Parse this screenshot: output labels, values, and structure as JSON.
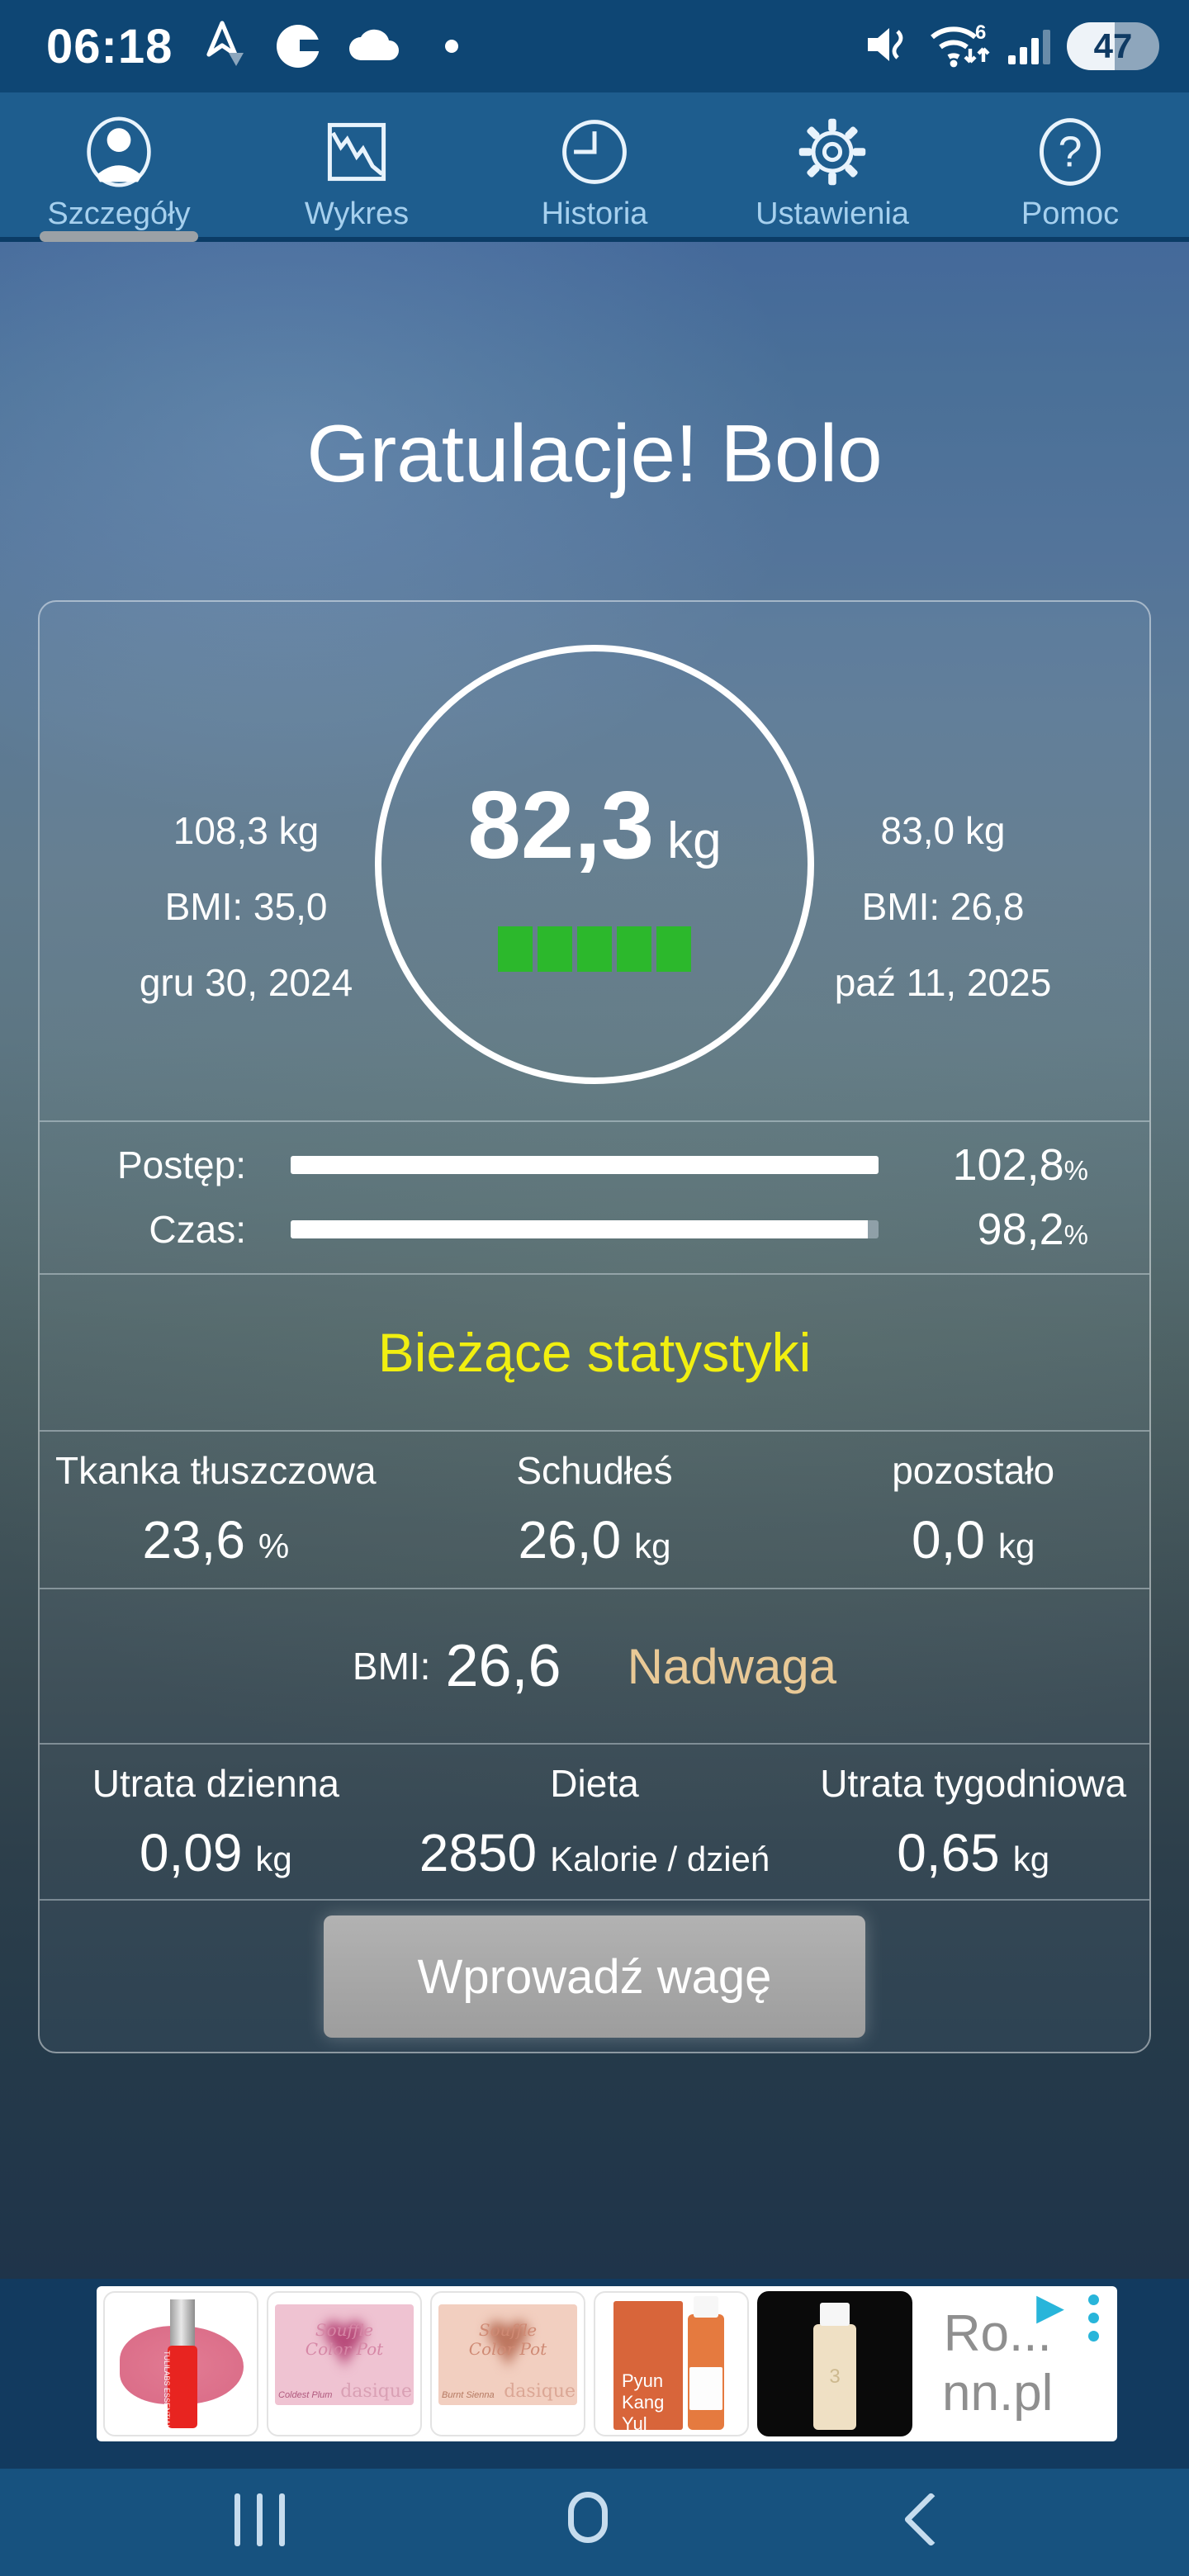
{
  "status_bar": {
    "time": "06:18",
    "battery_percent": "47"
  },
  "tab_bar": {
    "tabs": [
      {
        "label": "Szczegóły",
        "selected": true
      },
      {
        "label": "Wykres",
        "selected": false
      },
      {
        "label": "Historia",
        "selected": false
      },
      {
        "label": "Ustawienia",
        "selected": false
      },
      {
        "label": "Pomoc",
        "selected": false
      }
    ]
  },
  "main": {
    "title": "Gratulacje! Bolo",
    "start": {
      "weight": "108,3 kg",
      "bmi": "BMI: 35,0",
      "date": "gru 30, 2024"
    },
    "goal": {
      "weight": "83,0 kg",
      "bmi": "BMI: 26,8",
      "date": "paź 11, 2025"
    },
    "current": {
      "value": "82,3",
      "unit": "kg",
      "progress_blocks": 5
    },
    "progress_row": {
      "label": "Postęp:",
      "value": "102,8",
      "unit": "%",
      "percent": 102.8
    },
    "time_row": {
      "label": "Czas:",
      "value": "98,2",
      "unit": "%",
      "percent": 98.2
    },
    "stats_heading": "Bieżące statystyki",
    "stats": [
      {
        "label": "Tkanka tłuszczowa",
        "value": "23,6",
        "unit": "%"
      },
      {
        "label": "Schudłeś",
        "value": "26,0",
        "unit": "kg"
      },
      {
        "label": "pozostało",
        "value": "0,0",
        "unit": "kg"
      }
    ],
    "bmi_row": {
      "label": "BMI:",
      "value": "26,6",
      "category": "Nadwaga"
    },
    "daily_stats": [
      {
        "label": "Utrata dzienna",
        "value": "0,09",
        "unit": "kg"
      },
      {
        "label": "Dieta",
        "value": "2850",
        "unit": "Kalorie / dzień"
      },
      {
        "label": "Utrata tygodniowa",
        "value": "0,65",
        "unit": "kg"
      }
    ],
    "enter_weight_button": "Wprowadź wagę"
  },
  "ad": {
    "products": [
      {
        "name": "TULILABS ESSENTIAL LIP OIL"
      },
      {
        "line1": "Souffle",
        "line2": "Color Pot",
        "shade": "Coldest Plum",
        "brand": "dasique"
      },
      {
        "line1": "Souffle",
        "line2": "Color Pot",
        "shade": "Burnt Sienna",
        "brand": "dasique"
      },
      {
        "brand": "Pyun Kang Yul"
      },
      {
        "bottle_number": "3"
      }
    ],
    "advertiser_line1": "Ro...",
    "advertiser_line2": "nn.pl",
    "adchoices_glyph": "▶"
  },
  "colors": {
    "status_bar": "#0e4674",
    "tab_bar": "#1e5d8e",
    "accent_yellow": "#f1ef10",
    "bmi_category_tan": "#e9c996",
    "progress_green": "#2cb82c",
    "ad_blue": "#28b5da",
    "nav_bar": "#17527f"
  }
}
